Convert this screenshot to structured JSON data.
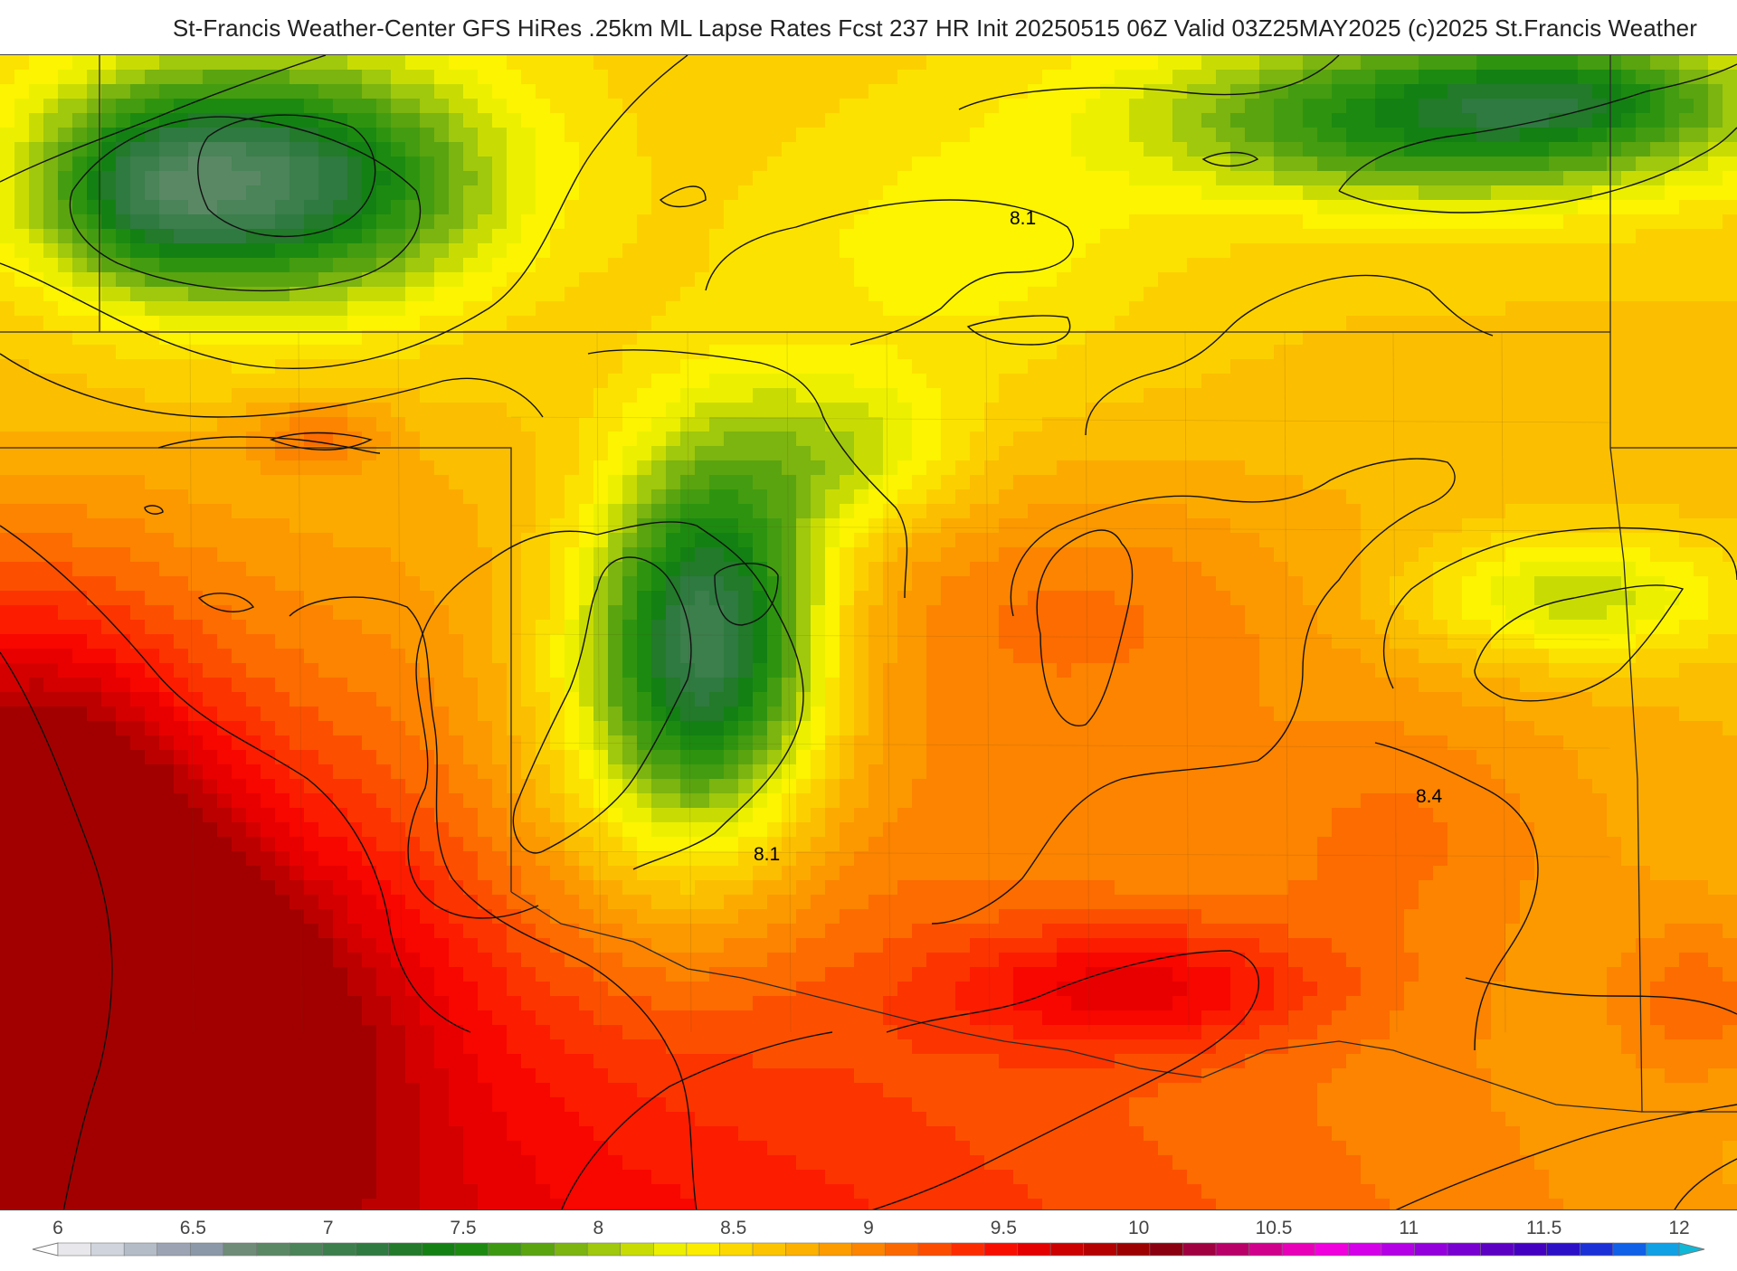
{
  "header": {
    "title": "St-Francis Weather-Center GFS HiRes .25km ML Lapse Rates  Fcst 237 HR Init 20250515 06Z  Valid 03Z25MAY2025    (c)2025 St.Francis Weather"
  },
  "map": {
    "fill_palette": [
      {
        "value": 6.0,
        "color": "#e8e8ec"
      },
      {
        "value": 6.1,
        "color": "#c8ccd4"
      },
      {
        "value": 6.2,
        "color": "#a8b0bc"
      },
      {
        "value": 6.3,
        "color": "#8c98a4"
      },
      {
        "value": 6.4,
        "color": "#6e8c78"
      },
      {
        "value": 6.5,
        "color": "#5a8864"
      },
      {
        "value": 6.6,
        "color": "#4a8458"
      },
      {
        "value": 6.7,
        "color": "#3c7e4c"
      },
      {
        "value": 6.8,
        "color": "#2f7a40"
      },
      {
        "value": 6.9,
        "color": "#227a2a"
      },
      {
        "value": 7.0,
        "color": "#138014"
      },
      {
        "value": 7.1,
        "color": "#1c8a10"
      },
      {
        "value": 7.2,
        "color": "#2e9410"
      },
      {
        "value": 7.3,
        "color": "#449c10"
      },
      {
        "value": 7.4,
        "color": "#5aa410"
      },
      {
        "value": 7.5,
        "color": "#7cb410"
      },
      {
        "value": 7.6,
        "color": "#a0c80c"
      },
      {
        "value": 7.7,
        "color": "#c8dc04"
      },
      {
        "value": 7.8,
        "color": "#ecf000"
      },
      {
        "value": 7.9,
        "color": "#fcf400"
      },
      {
        "value": 8.0,
        "color": "#fce200"
      },
      {
        "value": 8.1,
        "color": "#fcd000"
      },
      {
        "value": 8.2,
        "color": "#fcbe00"
      },
      {
        "value": 8.3,
        "color": "#fcaa00"
      },
      {
        "value": 8.4,
        "color": "#fc9800"
      },
      {
        "value": 8.5,
        "color": "#fc8400"
      },
      {
        "value": 8.6,
        "color": "#fc6c00"
      },
      {
        "value": 8.7,
        "color": "#fc5000"
      },
      {
        "value": 8.8,
        "color": "#fc3400"
      },
      {
        "value": 8.9,
        "color": "#fc1c00"
      },
      {
        "value": 9.0,
        "color": "#f80600"
      },
      {
        "value": 9.1,
        "color": "#e80000"
      },
      {
        "value": 9.2,
        "color": "#d40000"
      },
      {
        "value": 9.3,
        "color": "#bc0000"
      },
      {
        "value": 9.4,
        "color": "#a20000"
      }
    ],
    "contour_labels": [
      "8.1",
      "8.1",
      "8.4"
    ]
  },
  "colorbar": {
    "ticks": [
      "6",
      "6.5",
      "7",
      "7.5",
      "8",
      "8.5",
      "9",
      "9.5",
      "10",
      "10.5",
      "11",
      "11.5",
      "12"
    ],
    "range": [
      6,
      12
    ],
    "bins": 49,
    "colors": [
      "#e8e8ec",
      "#d0d4dc",
      "#b4bcc8",
      "#9ca4b4",
      "#8a98a8",
      "#6e8c78",
      "#5a8864",
      "#4a8458",
      "#3c7e4c",
      "#2f7a40",
      "#227a2a",
      "#138014",
      "#1c8a10",
      "#3c9810",
      "#5aa410",
      "#7cb410",
      "#a0c80c",
      "#c8dc04",
      "#ecf000",
      "#fcec00",
      "#fcd800",
      "#fcc400",
      "#fcb000",
      "#fc9c00",
      "#fc8400",
      "#fc6800",
      "#fc4c00",
      "#fc2c00",
      "#f80e00",
      "#e40000",
      "#cc0000",
      "#b40000",
      "#9c0000",
      "#8a0010",
      "#a00040",
      "#b80068",
      "#d0008c",
      "#e800b8",
      "#f000dc",
      "#d400e8",
      "#b400e4",
      "#9400dc",
      "#7800d0",
      "#5c00c4",
      "#4400c0",
      "#2c10c8",
      "#1c30d8",
      "#1060e8",
      "#10a0e4"
    ],
    "low_extend_color": "#ffffff",
    "high_extend_color": "#10b8d8"
  }
}
